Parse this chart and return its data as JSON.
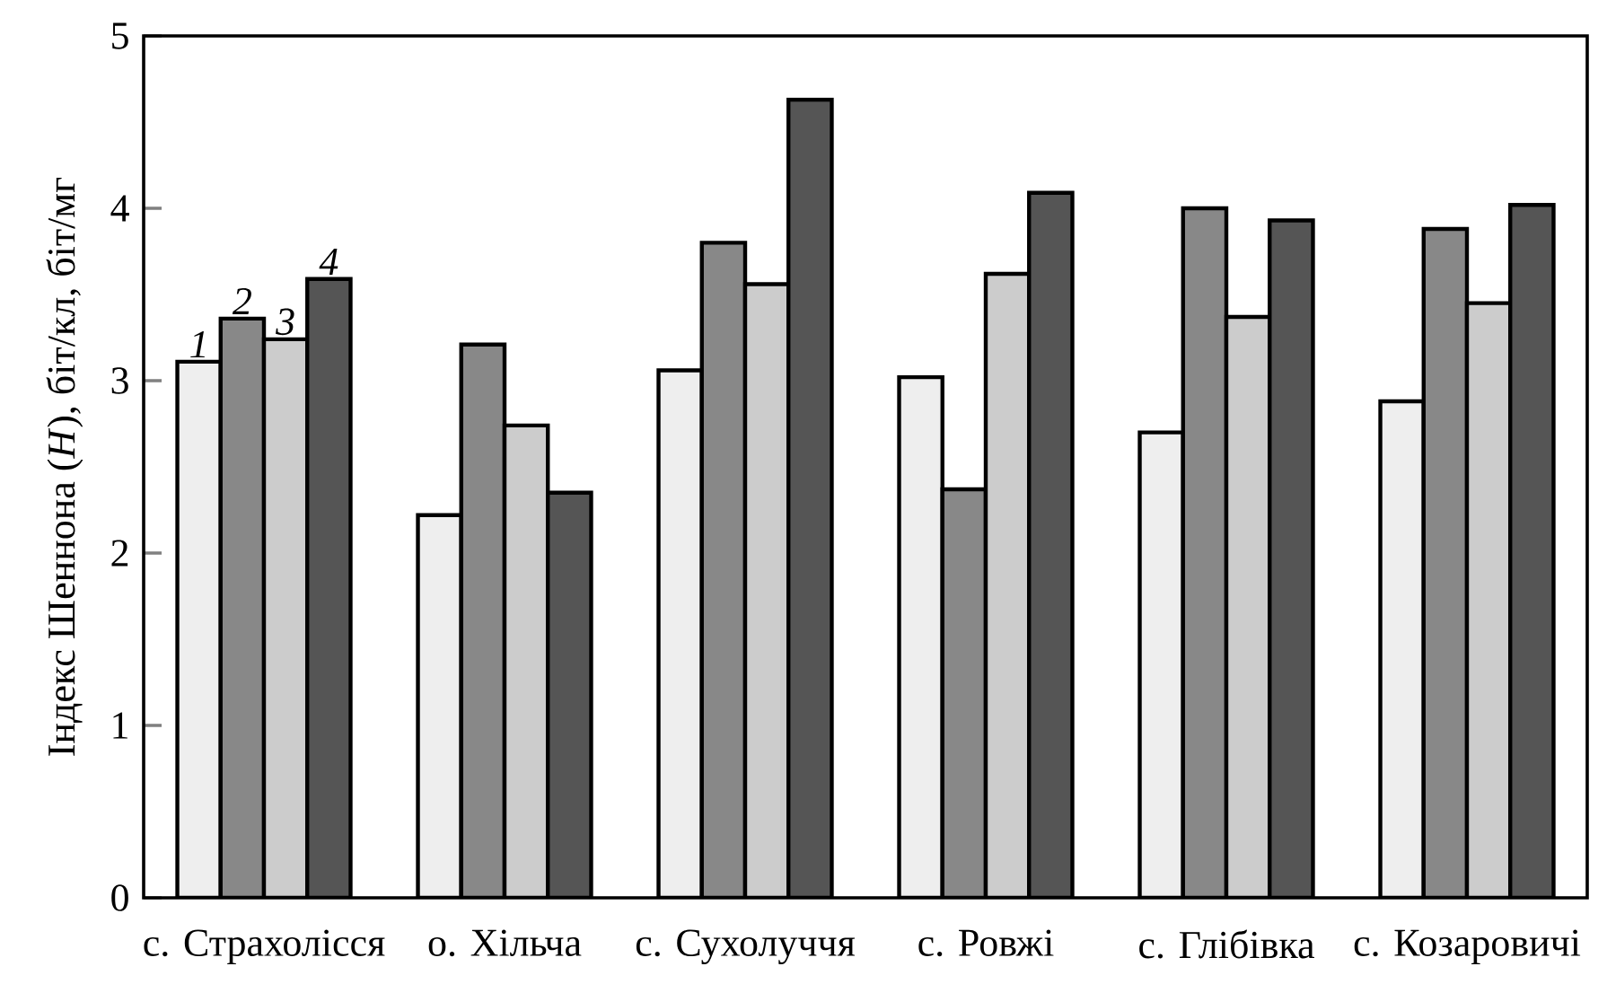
{
  "chart_data": {
    "type": "bar",
    "ylabel": "Індекс Шеннона (*H*), біт/кл, біт/мг",
    "categories": [
      "с. Страхолісся",
      "о. Хільча",
      "с. Сухолуччя",
      "с. Ровжі",
      "с. Глібівка",
      "с. Козаровичі"
    ],
    "series": [
      {
        "name": "*1*",
        "color": "#eeeeee",
        "values": [
          3.11,
          2.22,
          3.06,
          3.02,
          2.7,
          2.88
        ]
      },
      {
        "name": "*2*",
        "color": "#888888",
        "values": [
          3.36,
          3.21,
          3.8,
          2.37,
          4.0,
          3.88
        ]
      },
      {
        "name": "*3*",
        "color": "#cccccc",
        "values": [
          3.24,
          2.74,
          3.56,
          3.62,
          3.37,
          3.45
        ]
      },
      {
        "name": "*4*",
        "color": "#555555",
        "values": [
          3.59,
          2.35,
          4.63,
          4.09,
          3.93,
          4.02
        ]
      }
    ],
    "ylim": [
      0,
      5
    ],
    "yticks": [
      0,
      1,
      2,
      3,
      4,
      5
    ],
    "grid": false,
    "legend": false
  }
}
